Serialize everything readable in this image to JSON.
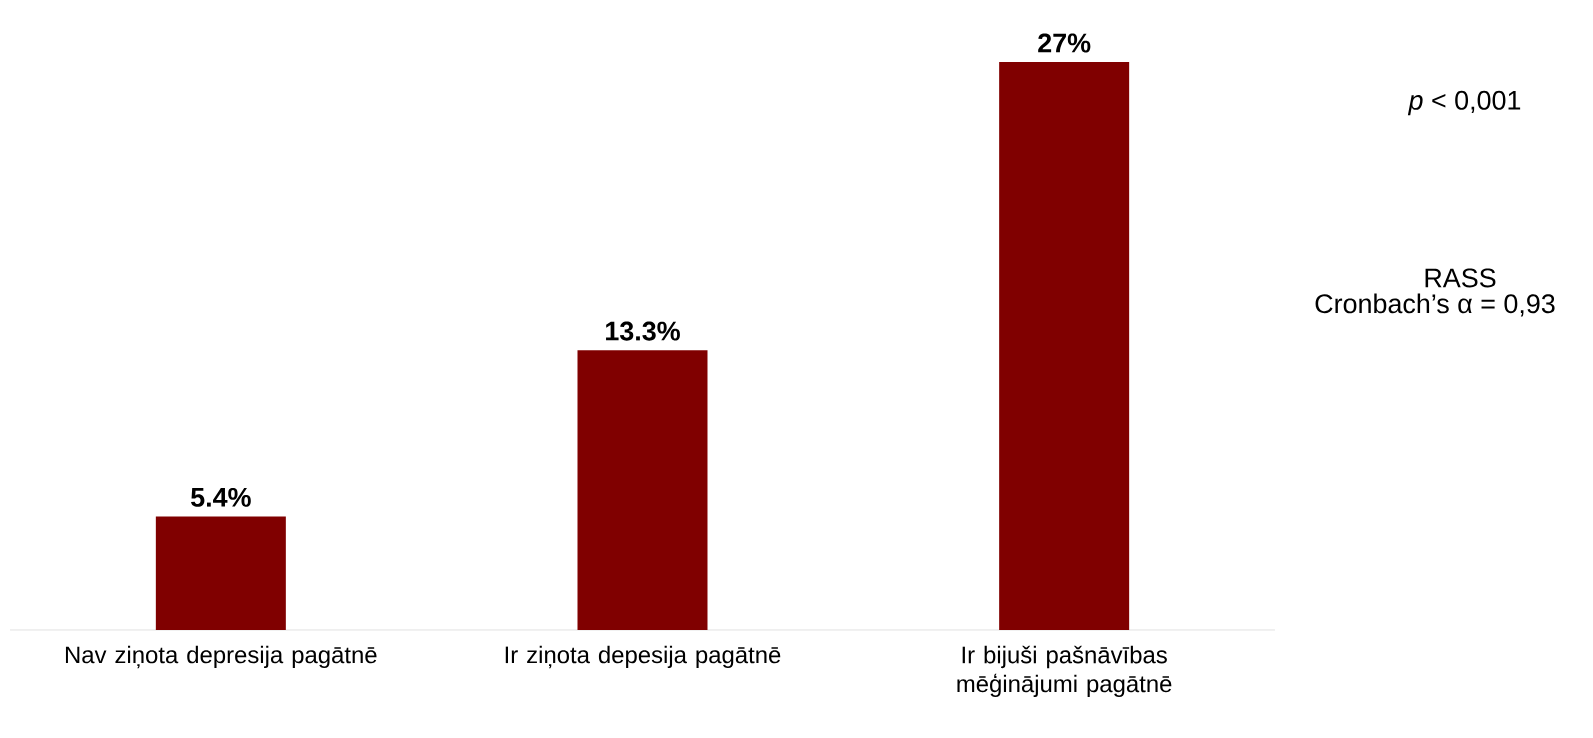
{
  "chart_data": {
    "type": "bar",
    "categories": [
      "Nav ziņota depresija pagātnē",
      "Ir ziņota depesija pagātnē",
      "Ir bijuši pašnāvības mēģinājumi pagātnē"
    ],
    "values": [
      5.4,
      13.3,
      27
    ],
    "value_labels": [
      "5.4%",
      "13.3%",
      "27%"
    ],
    "color": "#800000",
    "annotations": [
      "*p* < 0,001",
      "RASS",
      "Cronbach’s α = 0,93"
    ]
  }
}
